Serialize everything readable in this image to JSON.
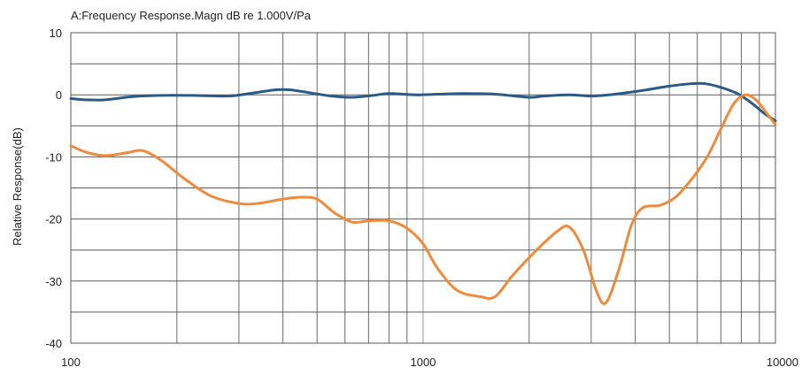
{
  "chart_data": {
    "type": "line",
    "title": "A:Frequency Response.Magn dB re 1.000V/Pa",
    "xlabel": "",
    "ylabel": "Relative Response(dB)",
    "xscale": "log",
    "xlim": [
      100,
      10000
    ],
    "ylim": [
      -40,
      10
    ],
    "x_ticks": [
      "100",
      "1000",
      "10000"
    ],
    "y_ticks": [
      "10",
      "0",
      "-10",
      "-20",
      "-30",
      "-40"
    ],
    "grid": true,
    "legend": "none",
    "series": [
      {
        "color": "#2c5a86",
        "points": [
          [
            100,
            -0.6
          ],
          [
            110,
            -0.8
          ],
          [
            125,
            -0.8
          ],
          [
            150,
            -0.3
          ],
          [
            180,
            -0.1
          ],
          [
            220,
            -0.1
          ],
          [
            280,
            -0.2
          ],
          [
            330,
            0.3
          ],
          [
            380,
            0.8
          ],
          [
            420,
            0.8
          ],
          [
            480,
            0.3
          ],
          [
            550,
            -0.2
          ],
          [
            630,
            -0.4
          ],
          [
            720,
            -0.1
          ],
          [
            800,
            0.2
          ],
          [
            950,
            0.0
          ],
          [
            1100,
            0.1
          ],
          [
            1300,
            0.2
          ],
          [
            1600,
            0.1
          ],
          [
            2000,
            -0.4
          ],
          [
            2200,
            -0.2
          ],
          [
            2600,
            0.0
          ],
          [
            3000,
            -0.2
          ],
          [
            3500,
            0.1
          ],
          [
            4200,
            0.7
          ],
          [
            5000,
            1.4
          ],
          [
            5800,
            1.8
          ],
          [
            6300,
            1.8
          ],
          [
            7000,
            1.2
          ],
          [
            7800,
            0.2
          ],
          [
            8500,
            -1.2
          ],
          [
            9300,
            -3.0
          ],
          [
            10000,
            -4.2
          ]
        ]
      },
      {
        "color": "#ef8a3a",
        "points": [
          [
            100,
            -8.2
          ],
          [
            110,
            -9.2
          ],
          [
            125,
            -9.8
          ],
          [
            145,
            -9.3
          ],
          [
            160,
            -9.0
          ],
          [
            180,
            -10.5
          ],
          [
            210,
            -13.5
          ],
          [
            250,
            -16.3
          ],
          [
            300,
            -17.5
          ],
          [
            340,
            -17.5
          ],
          [
            400,
            -16.8
          ],
          [
            450,
            -16.5
          ],
          [
            500,
            -16.8
          ],
          [
            560,
            -19.0
          ],
          [
            630,
            -20.5
          ],
          [
            700,
            -20.3
          ],
          [
            800,
            -20.3
          ],
          [
            900,
            -21.5
          ],
          [
            1000,
            -24.0
          ],
          [
            1100,
            -28.0
          ],
          [
            1250,
            -31.5
          ],
          [
            1450,
            -32.5
          ],
          [
            1600,
            -32.5
          ],
          [
            1800,
            -29.0
          ],
          [
            2100,
            -25.0
          ],
          [
            2400,
            -22.0
          ],
          [
            2600,
            -21.3
          ],
          [
            2850,
            -25.0
          ],
          [
            3100,
            -31.5
          ],
          [
            3300,
            -33.5
          ],
          [
            3600,
            -28.0
          ],
          [
            3900,
            -21.0
          ],
          [
            4200,
            -18.2
          ],
          [
            4700,
            -17.8
          ],
          [
            5200,
            -16.5
          ],
          [
            5800,
            -13.5
          ],
          [
            6400,
            -10.0
          ],
          [
            7000,
            -5.5
          ],
          [
            7600,
            -1.5
          ],
          [
            8200,
            0.0
          ],
          [
            8800,
            -0.8
          ],
          [
            9400,
            -2.8
          ],
          [
            10000,
            -4.8
          ]
        ]
      }
    ]
  }
}
